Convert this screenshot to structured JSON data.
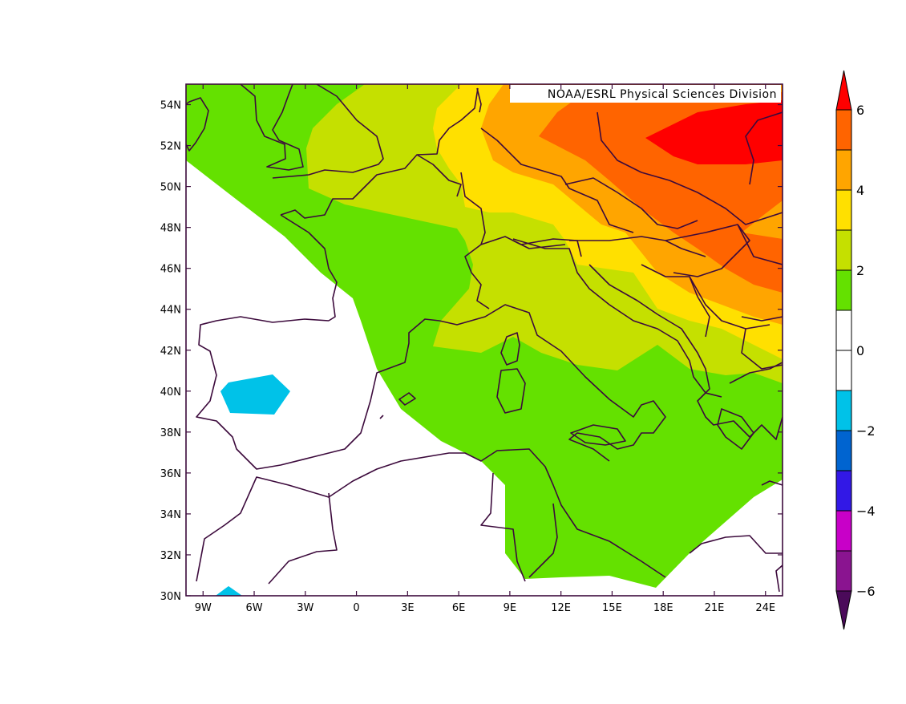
{
  "map": {
    "credit": "NOAA/ESRL Physical Sciences Division",
    "lon_ticks": [
      "9W",
      "6W",
      "3W",
      "0",
      "3E",
      "6E",
      "9E",
      "12E",
      "15E",
      "18E",
      "21E",
      "24E"
    ],
    "lat_ticks": [
      "54N",
      "52N",
      "50N",
      "48N",
      "46N",
      "44N",
      "42N",
      "40N",
      "38N",
      "36N",
      "34N",
      "32N",
      "30N"
    ],
    "extent": {
      "lon_min": -10,
      "lon_max": 25,
      "lat_min": 30,
      "lat_max": 55
    }
  },
  "colorbar": {
    "labels": [
      "6",
      "4",
      "2",
      "0",
      "−2",
      "−4",
      "−6"
    ],
    "levels": [
      {
        "range": "5 to 6",
        "color": "#ff0000"
      },
      {
        "range": "4 to 5",
        "color": "#ff6400"
      },
      {
        "range": "3 to 4",
        "color": "#ffa500"
      },
      {
        "range": "2 to 3",
        "color": "#ffe000"
      },
      {
        "range": "1 to 2",
        "color": "#c5e000"
      },
      {
        "range": "0 to 1",
        "color": "#64e100"
      },
      {
        "range": "-1 to 0",
        "color": "#ffffff"
      },
      {
        "range": "-2 to -1",
        "color": "#ffffff"
      },
      {
        "range": "-3 to -2",
        "color": "#00c2e8"
      },
      {
        "range": "-4 to -3",
        "color": "#0064d0"
      },
      {
        "range": "-5 to -4",
        "color": "#3218e6"
      },
      {
        "range": "-6 to -5",
        "color": "#c800c8"
      },
      {
        "range": "below -6",
        "color": "#8a1490"
      },
      {
        "range": "min arrow",
        "color": "#4b0a5a"
      }
    ]
  }
}
